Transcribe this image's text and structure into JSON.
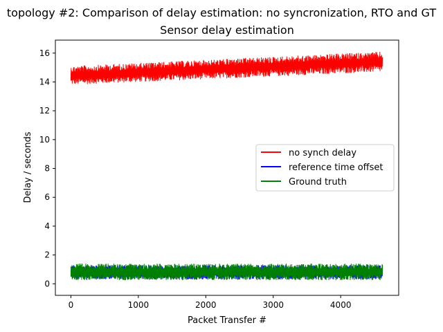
{
  "chart_data": {
    "type": "line",
    "title": "topology #2: Comparison of delay estimation: no syncronization, RTO and GT",
    "subtitle": "Sensor delay estimation",
    "xlabel": "Packet Transfer #",
    "ylabel": "Delay / seconds",
    "xlim": [
      -230,
      4860
    ],
    "ylim": [
      -0.8,
      16.9
    ],
    "xticks": [
      0,
      1000,
      2000,
      3000,
      4000
    ],
    "yticks": [
      0,
      2,
      4,
      6,
      8,
      10,
      12,
      14,
      16
    ],
    "grid": false,
    "legend_position": "center-right",
    "n_points": 4620,
    "series": [
      {
        "name": "no synch delay",
        "color": "#ff0000",
        "x": [
          0,
          4620
        ],
        "y_low": [
          13.8,
          14.7
        ],
        "y_high": [
          15.1,
          16.1
        ]
      },
      {
        "name": "reference time offset",
        "color": "#0000ff",
        "x": [
          0,
          4620
        ],
        "y_low": [
          0.3,
          0.3
        ],
        "y_high": [
          1.3,
          1.3
        ]
      },
      {
        "name": "Ground truth",
        "color": "#008000",
        "x": [
          0,
          4620
        ],
        "y_low": [
          0.25,
          0.25
        ],
        "y_high": [
          1.4,
          1.4
        ]
      }
    ]
  }
}
